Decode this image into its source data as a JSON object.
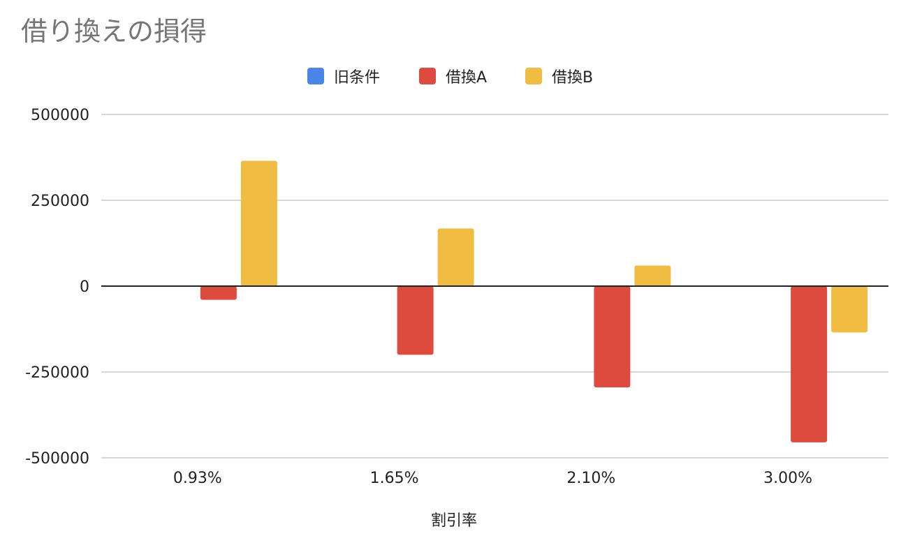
{
  "chart_data": {
    "type": "bar",
    "title": "借り換えの損得",
    "xlabel": "割引率",
    "ylabel": "",
    "categories": [
      "0.93%",
      "1.65%",
      "2.10%",
      "3.00%"
    ],
    "series": [
      {
        "name": "旧条件",
        "color": "#4a86e8",
        "values": [
          0,
          0,
          0,
          0
        ]
      },
      {
        "name": "借換A",
        "color": "#dd4b3e",
        "values": [
          -40000,
          -200000,
          -295000,
          -455000
        ]
      },
      {
        "name": "借換B",
        "color": "#f0bd42",
        "values": [
          365000,
          168000,
          60000,
          -135000
        ]
      }
    ],
    "ylim": [
      -500000,
      500000
    ],
    "yticks": [
      500000,
      250000,
      0,
      -250000,
      -500000
    ],
    "ytick_labels": [
      "500000",
      "250000",
      "0",
      "-250000",
      "-500000"
    ],
    "legend_position": "top",
    "grid": true
  }
}
